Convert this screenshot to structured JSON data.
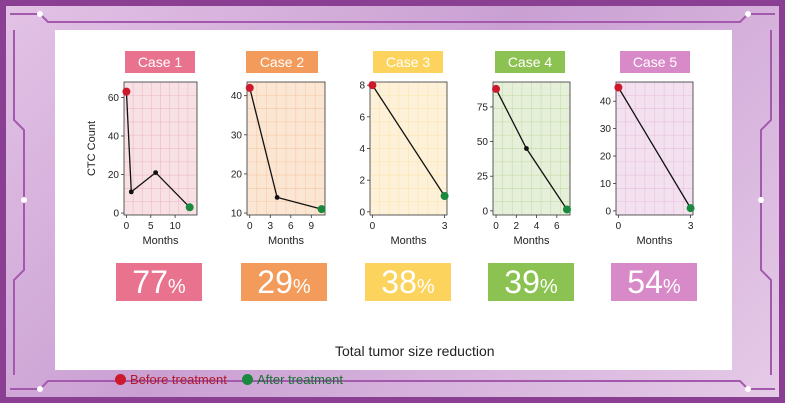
{
  "chart_data": [
    {
      "type": "line",
      "title": "Case 1",
      "xlabel": "Months",
      "ylabel": "CTC Count",
      "xlim": [
        -0.5,
        14.5
      ],
      "ylim": [
        -1,
        68
      ],
      "xticks": [
        0,
        5,
        10
      ],
      "yticks": [
        0,
        20,
        40,
        60
      ],
      "x": [
        0,
        1,
        6,
        13
      ],
      "y": [
        63,
        11,
        21,
        3
      ],
      "reduction_value": "77",
      "reduction_unit": "%",
      "color": "#e9728f",
      "bg": "#f7e1e5"
    },
    {
      "type": "line",
      "title": "Case 2",
      "xlabel": "Months",
      "ylabel": "",
      "xlim": [
        -0.4,
        11
      ],
      "ylim": [
        9.5,
        43.5
      ],
      "xticks": [
        0,
        3,
        6,
        9
      ],
      "yticks": [
        10,
        20,
        30,
        40
      ],
      "x": [
        0,
        4,
        10.5
      ],
      "y": [
        42,
        14,
        11
      ],
      "reduction_value": "29",
      "reduction_unit": "%",
      "color": "#f29b5b",
      "bg": "#fbe5d3"
    },
    {
      "type": "line",
      "title": "Case 3",
      "xlabel": "Months",
      "ylabel": "",
      "xlim": [
        -0.1,
        3.1
      ],
      "ylim": [
        -0.2,
        8.2
      ],
      "xticks": [
        0,
        3
      ],
      "yticks": [
        0,
        2,
        4,
        6,
        8
      ],
      "x": [
        0,
        3
      ],
      "y": [
        8,
        1
      ],
      "reduction_value": "38",
      "reduction_unit": "%",
      "color": "#fbd35d",
      "bg": "#fdf1d9"
    },
    {
      "type": "line",
      "title": "Case 4",
      "xlabel": "Months",
      "ylabel": "",
      "xlim": [
        -0.3,
        7.3
      ],
      "ylim": [
        -3,
        93
      ],
      "xticks": [
        0,
        2,
        4,
        6
      ],
      "yticks": [
        0,
        25,
        50,
        75
      ],
      "x": [
        0,
        3,
        7
      ],
      "y": [
        88,
        45,
        1
      ],
      "reduction_value": "39",
      "reduction_unit": "%",
      "color": "#8cc251",
      "bg": "#e6efd9"
    },
    {
      "type": "line",
      "title": "Case 5",
      "xlabel": "Months",
      "ylabel": "",
      "xlim": [
        -0.1,
        3.1
      ],
      "ylim": [
        -1.5,
        47
      ],
      "xticks": [
        0,
        3
      ],
      "yticks": [
        0,
        10,
        20,
        30,
        40
      ],
      "x": [
        0,
        3
      ],
      "y": [
        45,
        1
      ],
      "reduction_value": "54",
      "reduction_unit": "%",
      "color": "#d889c7",
      "bg": "#f3e1ef"
    }
  ],
  "footer": {
    "title": "Total tumor size reduction"
  },
  "legend": {
    "before": {
      "label": "Before treatment",
      "color": "#cc1a2c"
    },
    "after": {
      "label": "After treatment",
      "color": "#19893d"
    }
  }
}
